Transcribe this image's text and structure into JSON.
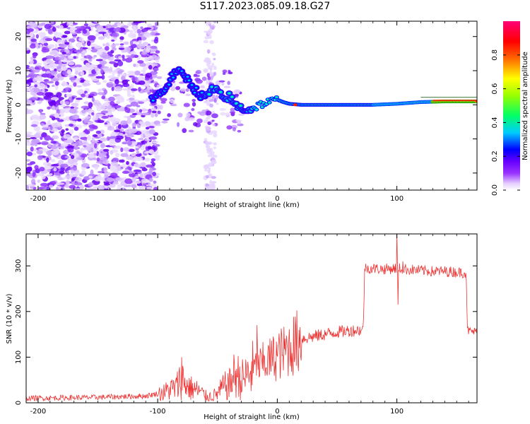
{
  "figure": {
    "title": "S117.2023.085.09.18.G27"
  },
  "chart_data": [
    {
      "type": "heatmap",
      "xlabel": "Height of straight line (km)",
      "ylabel": "Frequency (Hz)",
      "xlim": [
        -210,
        167
      ],
      "ylim": [
        -25,
        24.5
      ],
      "xticks": [
        -200,
        -100,
        0,
        100
      ],
      "yticks": [
        -20,
        -10,
        0,
        10,
        20
      ],
      "colorbar": {
        "label": "Normalized spectral amplitude",
        "range": [
          0,
          1
        ],
        "ticks": [
          0.0,
          0.2,
          0.4,
          0.6,
          0.8
        ],
        "colormap": [
          "#ffffff",
          "#e4ccff",
          "#9933ff",
          "#6600ff",
          "#0000ff",
          "#00ccff",
          "#00ff66",
          "#99ff00",
          "#ffff00",
          "#ff6600",
          "#ff0000",
          "#ff0077"
        ]
      },
      "ridge": [
        [
          -105,
          2
        ],
        [
          -100,
          3
        ],
        [
          -95,
          4
        ],
        [
          -90,
          7
        ],
        [
          -85,
          10
        ],
        [
          -80,
          9
        ],
        [
          -75,
          7.5
        ],
        [
          -70,
          5
        ],
        [
          -65,
          3
        ],
        [
          -60,
          2
        ],
        [
          -55,
          4.5
        ],
        [
          -50,
          4
        ],
        [
          -45,
          1.5
        ],
        [
          -40,
          2.5
        ],
        [
          -35,
          0
        ],
        [
          -30,
          -1
        ],
        [
          -25,
          -1.5
        ],
        [
          -20,
          -1
        ],
        [
          -15,
          0
        ],
        [
          -10,
          0.5
        ],
        [
          -5,
          1
        ],
        [
          0,
          1.5
        ],
        [
          5,
          0.8
        ],
        [
          10,
          0.3
        ],
        [
          20,
          0
        ],
        [
          40,
          0
        ],
        [
          60,
          0
        ],
        [
          80,
          0
        ],
        [
          100,
          0.3
        ],
        [
          120,
          0.8
        ],
        [
          140,
          1
        ],
        [
          167,
          1
        ]
      ]
    },
    {
      "type": "line",
      "xlabel": "Height of straight line (km)",
      "ylabel": "SNR (10 * v/v)",
      "xlim": [
        -210,
        167
      ],
      "ylim": [
        0,
        370
      ],
      "xticks": [
        -200,
        -100,
        0,
        100
      ],
      "yticks": [
        0,
        100,
        200,
        300
      ],
      "color": "#ee3333",
      "profile": [
        [
          -210,
          10
        ],
        [
          -150,
          12
        ],
        [
          -110,
          15
        ],
        [
          -100,
          20
        ],
        [
          -95,
          22
        ],
        [
          -90,
          30
        ],
        [
          -85,
          32
        ],
        [
          -80,
          55
        ],
        [
          -75,
          35
        ],
        [
          -70,
          30
        ],
        [
          -65,
          25
        ],
        [
          -60,
          15
        ],
        [
          -55,
          14
        ],
        [
          -50,
          20
        ],
        [
          -45,
          35
        ],
        [
          -40,
          40
        ],
        [
          -35,
          65
        ],
        [
          -30,
          50
        ],
        [
          -25,
          60
        ],
        [
          -20,
          75
        ],
        [
          -15,
          80
        ],
        [
          -10,
          90
        ],
        [
          -5,
          95
        ],
        [
          0,
          105
        ],
        [
          5,
          110
        ],
        [
          10,
          120
        ],
        [
          15,
          130
        ],
        [
          20,
          140
        ],
        [
          30,
          145
        ],
        [
          40,
          150
        ],
        [
          50,
          155
        ],
        [
          60,
          158
        ],
        [
          72,
          160
        ],
        [
          73,
          295
        ],
        [
          90,
          293
        ],
        [
          100,
          295
        ],
        [
          110,
          292
        ],
        [
          120,
          290
        ],
        [
          130,
          288
        ],
        [
          140,
          288
        ],
        [
          158,
          285
        ],
        [
          159,
          158
        ],
        [
          167,
          155
        ]
      ],
      "spikes": [
        [
          -80,
          100
        ],
        [
          -17,
          170
        ],
        [
          100,
          370
        ],
        [
          101,
          215
        ],
        [
          105,
          310
        ]
      ]
    }
  ]
}
